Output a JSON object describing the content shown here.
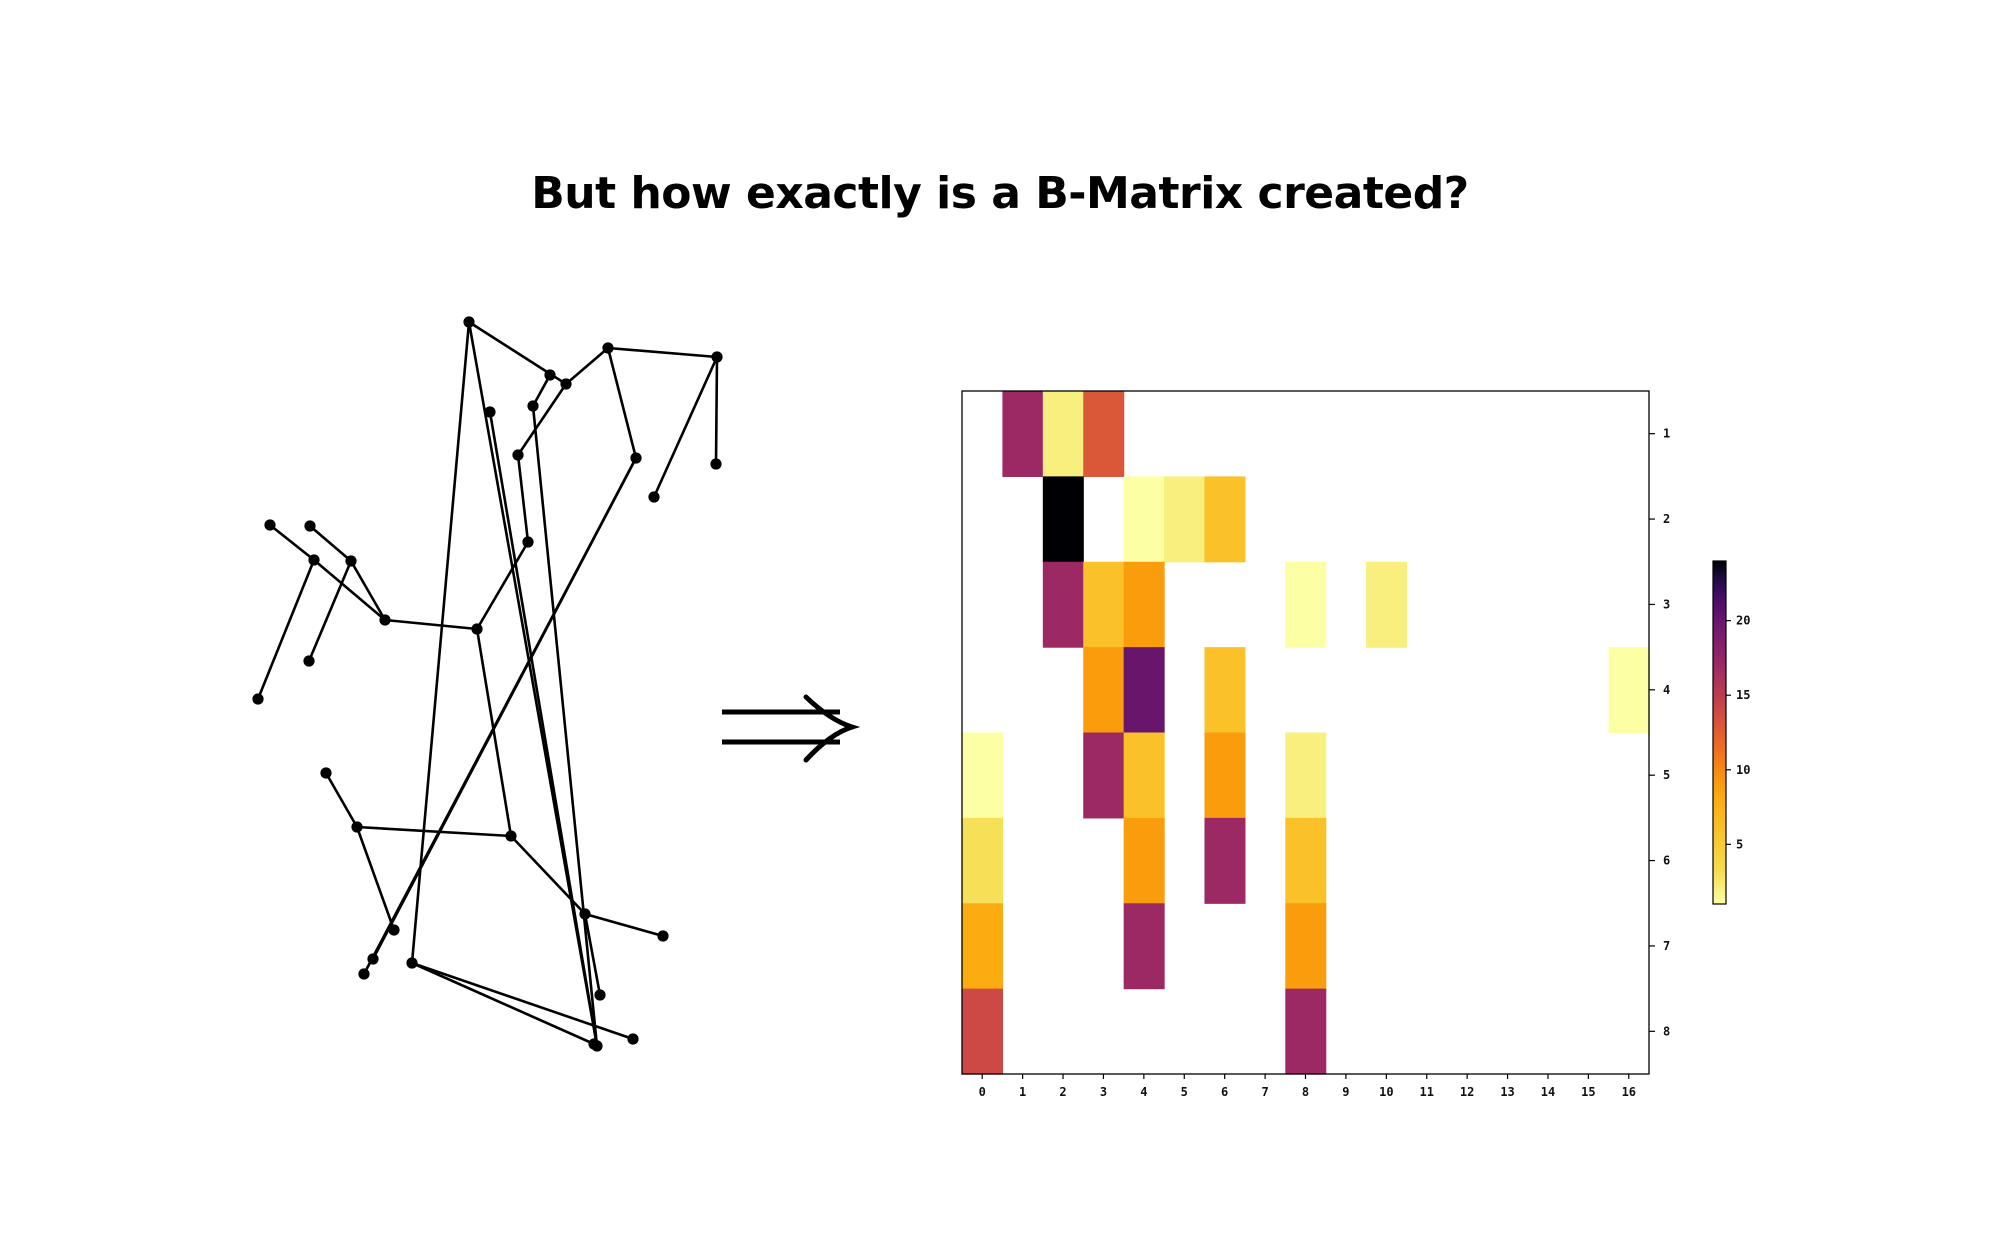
{
  "slide": {
    "title": "But how exactly is a B-Matrix created?"
  },
  "diagram": {
    "arrow_symbol": "implies-arrow",
    "tree": {
      "nodes": [
        "n0",
        "n1",
        "n2",
        "n3",
        "n4",
        "n5",
        "n6",
        "n7",
        "n8",
        "n9",
        "n10",
        "n11",
        "n12",
        "n13",
        "n14",
        "n15",
        "n16",
        "n17",
        "n18",
        "n19",
        "n20",
        "n21",
        "n22",
        "n23",
        "n24",
        "n25",
        "n26",
        "n27",
        "n28",
        "n29",
        "n30",
        "n31",
        "n32"
      ],
      "edges": [
        [
          "n0",
          "n1"
        ],
        [
          "n0",
          "n2"
        ],
        [
          "n0",
          "n3"
        ],
        [
          "n1",
          "n4"
        ],
        [
          "n1",
          "n5"
        ],
        [
          "n4",
          "n6"
        ],
        [
          "n4",
          "n7"
        ],
        [
          "n5",
          "n8"
        ],
        [
          "n5",
          "n9"
        ],
        [
          "n2",
          "n10"
        ],
        [
          "n2",
          "n11"
        ],
        [
          "n10",
          "n12"
        ],
        [
          "n10",
          "n13"
        ],
        [
          "n11",
          "n14"
        ],
        [
          "n11",
          "n15"
        ],
        [
          "n3",
          "n16"
        ],
        [
          "n16",
          "n17"
        ],
        [
          "n17",
          "n18"
        ],
        [
          "n17",
          "n19"
        ],
        [
          "n18",
          "n20"
        ],
        [
          "n18",
          "n21"
        ],
        [
          "n20",
          "n22"
        ],
        [
          "n20",
          "n23"
        ],
        [
          "n21",
          "n24"
        ],
        [
          "n21",
          "n25"
        ],
        [
          "n19",
          "n26"
        ],
        [
          "n19",
          "n27"
        ],
        [
          "n26",
          "n28"
        ],
        [
          "n26",
          "n29"
        ],
        [
          "n27",
          "n30"
        ],
        [
          "n27",
          "n31"
        ],
        [
          "n30",
          "n32"
        ]
      ]
    }
  },
  "chart_data": {
    "type": "heatmap",
    "x_ticks": [
      "0",
      "1",
      "2",
      "3",
      "4",
      "5",
      "6",
      "7",
      "8",
      "9",
      "10",
      "11",
      "12",
      "13",
      "14",
      "15",
      "16"
    ],
    "y_ticks": [
      "1",
      "2",
      "3",
      "4",
      "5",
      "6",
      "7",
      "8"
    ],
    "cells": [
      {
        "row": 1,
        "col": 1,
        "value": 17
      },
      {
        "row": 1,
        "col": 2,
        "value": 2
      },
      {
        "row": 1,
        "col": 3,
        "value": 13
      },
      {
        "row": 2,
        "col": 2,
        "value": 24
      },
      {
        "row": 2,
        "col": 4,
        "value": 1
      },
      {
        "row": 2,
        "col": 5,
        "value": 2
      },
      {
        "row": 2,
        "col": 6,
        "value": 6
      },
      {
        "row": 3,
        "col": 2,
        "value": 17
      },
      {
        "row": 3,
        "col": 3,
        "value": 6
      },
      {
        "row": 3,
        "col": 4,
        "value": 9
      },
      {
        "row": 3,
        "col": 8,
        "value": 1
      },
      {
        "row": 3,
        "col": 10,
        "value": 2
      },
      {
        "row": 4,
        "col": 3,
        "value": 9
      },
      {
        "row": 4,
        "col": 4,
        "value": 20
      },
      {
        "row": 4,
        "col": 6,
        "value": 6
      },
      {
        "row": 4,
        "col": 16,
        "value": 1
      },
      {
        "row": 5,
        "col": 0,
        "value": 1
      },
      {
        "row": 5,
        "col": 3,
        "value": 17
      },
      {
        "row": 5,
        "col": 4,
        "value": 6
      },
      {
        "row": 5,
        "col": 6,
        "value": 9
      },
      {
        "row": 5,
        "col": 8,
        "value": 2
      },
      {
        "row": 6,
        "col": 0,
        "value": 3
      },
      {
        "row": 6,
        "col": 4,
        "value": 9
      },
      {
        "row": 6,
        "col": 6,
        "value": 17
      },
      {
        "row": 6,
        "col": 8,
        "value": 6
      },
      {
        "row": 7,
        "col": 0,
        "value": 8
      },
      {
        "row": 7,
        "col": 4,
        "value": 17
      },
      {
        "row": 7,
        "col": 8,
        "value": 9
      },
      {
        "row": 8,
        "col": 0,
        "value": 14
      },
      {
        "row": 8,
        "col": 8,
        "value": 17
      }
    ],
    "colorbar": {
      "range": [
        1,
        24
      ],
      "ticks": [
        "5",
        "10",
        "15",
        "20"
      ],
      "colormap": "inferno_r"
    },
    "y_axis_side": "right",
    "grid": false
  }
}
